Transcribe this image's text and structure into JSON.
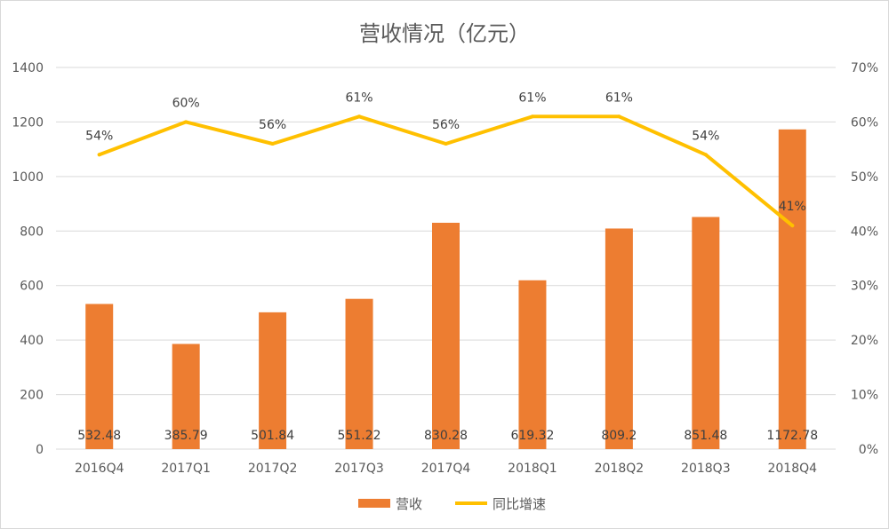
{
  "chart_data": {
    "type": "bar",
    "title": "营收情况（亿元）",
    "categories": [
      "2016Q4",
      "2017Q1",
      "2017Q2",
      "2017Q3",
      "2017Q4",
      "2018Q1",
      "2018Q2",
      "2018Q3",
      "2018Q4"
    ],
    "series": [
      {
        "name": "营收",
        "type": "bar",
        "axis": "left",
        "color": "#ED7D31",
        "values": [
          532.48,
          385.79,
          501.84,
          551.22,
          830.28,
          619.32,
          809.2,
          851.48,
          1172.78
        ],
        "labels": [
          "532.48",
          "385.79",
          "501.84",
          "551.22",
          "830.28",
          "619.32",
          "809.2",
          "851.48",
          "1172.78"
        ]
      },
      {
        "name": "同比增速",
        "type": "line",
        "axis": "right",
        "color": "#FFC000",
        "values": [
          0.54,
          0.6,
          0.56,
          0.61,
          0.56,
          0.61,
          0.61,
          0.54,
          0.41
        ],
        "labels": [
          "54%",
          "60%",
          "56%",
          "61%",
          "56%",
          "61%",
          "61%",
          "54%",
          "41%"
        ]
      }
    ],
    "y_left": {
      "min": 0,
      "max": 1400,
      "ticks": [
        "0",
        "200",
        "400",
        "600",
        "800",
        "1000",
        "1200",
        "1400"
      ]
    },
    "y_right": {
      "min": 0,
      "max": 0.7,
      "ticks": [
        "0%",
        "10%",
        "20%",
        "30%",
        "40%",
        "50%",
        "60%",
        "70%"
      ]
    },
    "grid": true,
    "legend": "bottom",
    "legend_entries": [
      "营收",
      "同比增速"
    ]
  }
}
